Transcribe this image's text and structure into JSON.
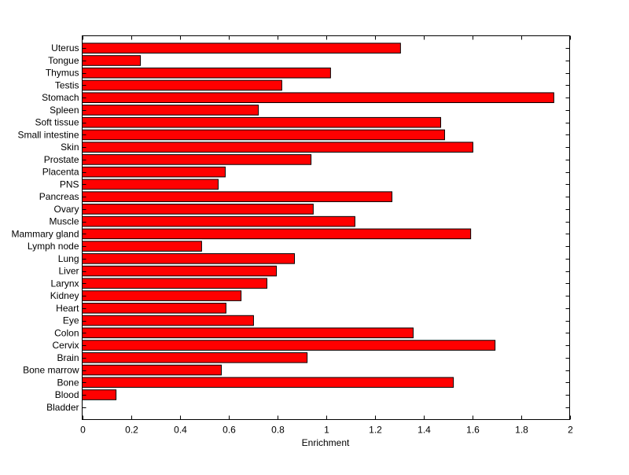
{
  "chart_data": {
    "type": "bar",
    "orientation": "horizontal",
    "title": "",
    "xlabel": "Enrichment",
    "ylabel": "",
    "xlim": [
      0,
      2
    ],
    "xticks": [
      "0",
      "0.2",
      "0.4",
      "0.6",
      "0.8",
      "1",
      "1.2",
      "1.4",
      "1.6",
      "1.8",
      "2"
    ],
    "grid": false,
    "bar_color": "#ff0000",
    "categories": [
      "Uterus",
      "Tongue",
      "Thymus",
      "Testis",
      "Stomach",
      "Spleen",
      "Soft tissue",
      "Small intestine",
      "Skin",
      "Prostate",
      "Placenta",
      "PNS",
      "Pancreas",
      "Ovary",
      "Muscle",
      "Mammary gland",
      "Lymph node",
      "Lung",
      "Liver",
      "Larynx",
      "Kidney",
      "Heart",
      "Eye",
      "Colon",
      "Cervix",
      "Brain",
      "Bone marrow",
      "Bone",
      "Blood",
      "Bladder"
    ],
    "values": [
      1.306,
      0.239,
      1.019,
      0.819,
      1.935,
      0.723,
      1.471,
      1.487,
      1.603,
      0.939,
      0.587,
      0.558,
      1.271,
      0.948,
      1.119,
      1.594,
      0.49,
      0.871,
      0.797,
      0.758,
      0.652,
      0.59,
      0.703,
      1.358,
      1.694,
      0.923,
      0.571,
      1.523,
      0.139,
      0
    ]
  }
}
